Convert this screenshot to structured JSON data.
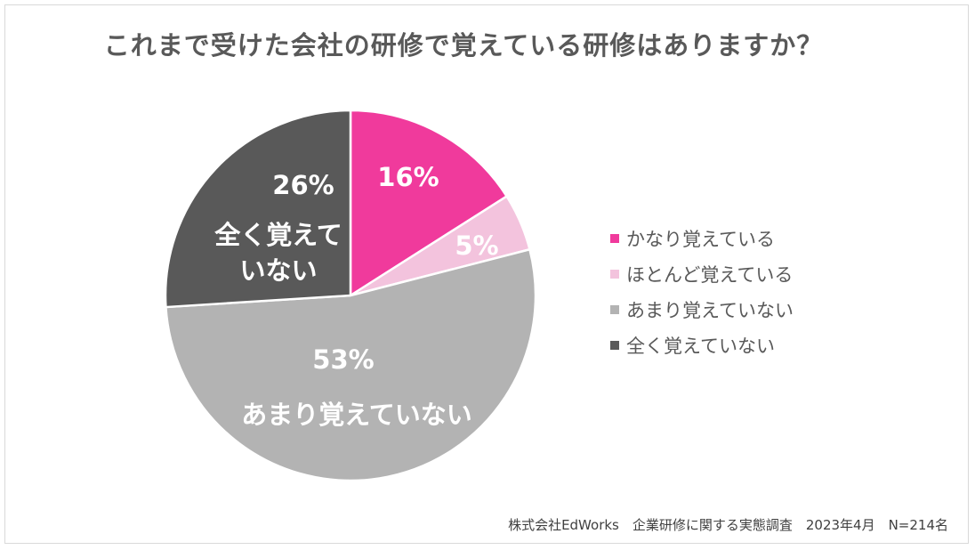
{
  "chart_data": {
    "type": "pie",
    "title": "これまで受けた会社の研修で覚えている研修はありますか？",
    "categories": [
      "かなり覚えている",
      "ほとんど覚えている",
      "あまり覚えていない",
      "全く覚えていない"
    ],
    "values": [
      16,
      5,
      53,
      26
    ],
    "value_labels": [
      "16%",
      "5%",
      "53%",
      "26%"
    ],
    "inline_labels": [
      "",
      "",
      "あまり覚えていない",
      "全く覚えて\nいない"
    ],
    "colors": [
      "#f03a9c",
      "#f3c3dd",
      "#b3b3b3",
      "#595959"
    ],
    "legend_position": "right"
  },
  "source": "株式会社EdWorks　企業研修に関する実態調査　2023年4月　N=214名"
}
